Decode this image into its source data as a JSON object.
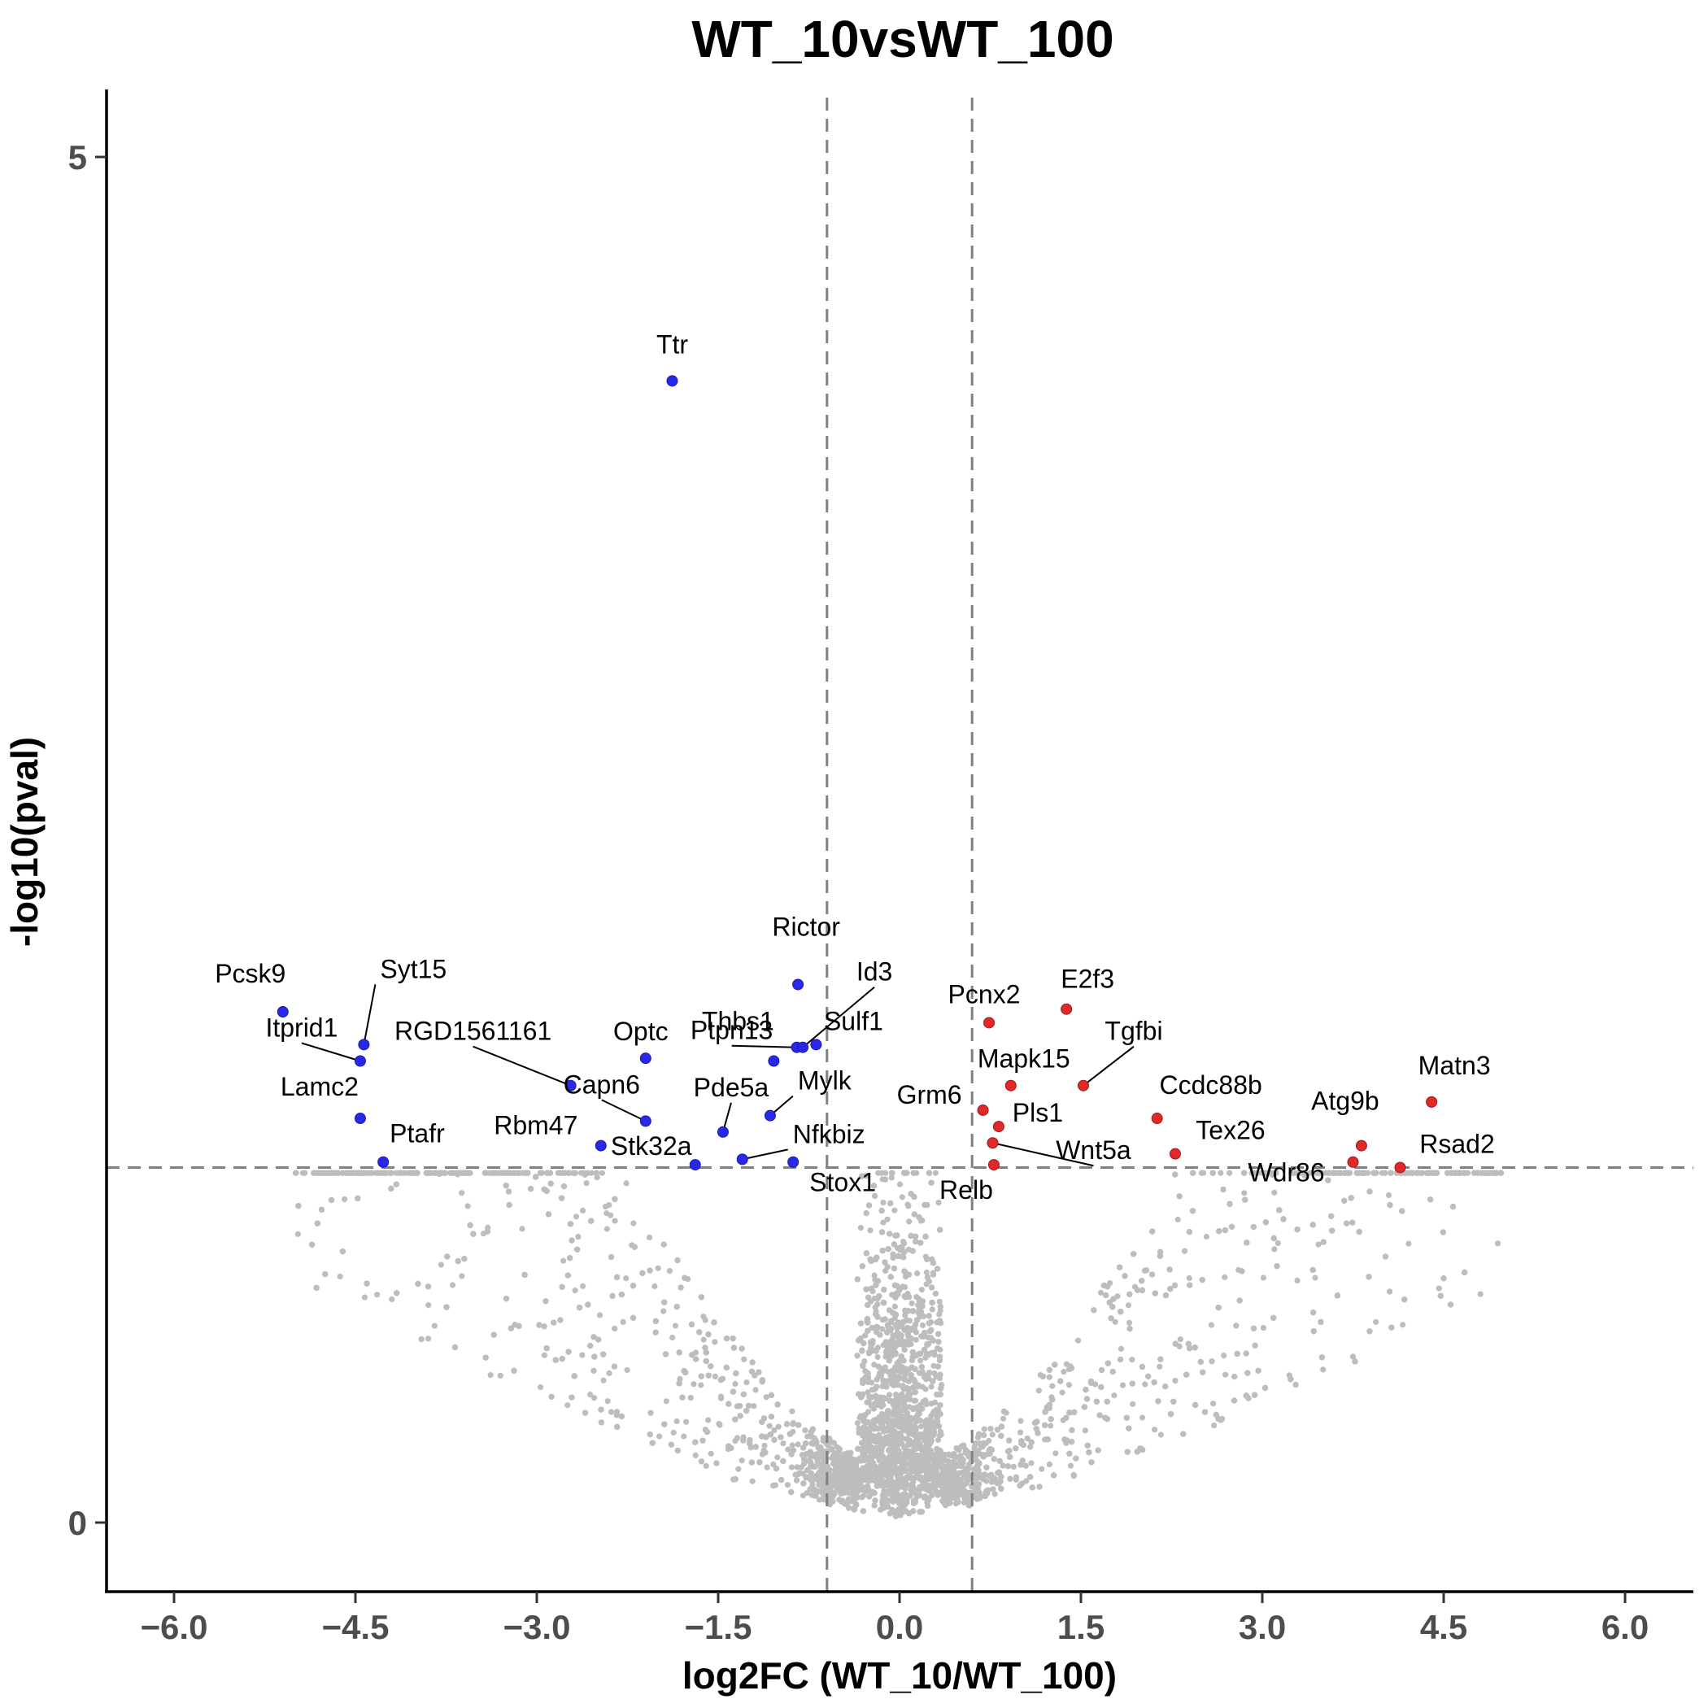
{
  "chart_data": {
    "type": "scatter",
    "title": "WT_10vsWT_100",
    "xlabel": "log2FC (WT_10/WT_100)",
    "ylabel": "-log10(pval)",
    "xlim": [
      -6.5,
      6.5
    ],
    "ylim": [
      -0.25,
      5.25
    ],
    "x_ticks": [
      -6.0,
      -4.5,
      -3.0,
      -1.5,
      0.0,
      1.5,
      3.0,
      4.5,
      6.0
    ],
    "x_tick_labels": [
      "−6.0",
      "−4.5",
      "−3.0",
      "−1.5",
      "0.0",
      "1.5",
      "3.0",
      "4.5",
      "6.0"
    ],
    "y_ticks": [
      0,
      5
    ],
    "y_tick_labels": [
      "0",
      "5"
    ],
    "grid": false,
    "legend": "none",
    "thresholds": {
      "log2fc": [
        -0.6,
        0.6
      ],
      "neg_log10_pval": 1.3
    },
    "colors": {
      "down": "#2828e6",
      "up": "#e02a2a",
      "ns": "#bdbdbd",
      "threshold_line": "#808080"
    },
    "significant_genes": [
      {
        "gene": "Ttr",
        "x": -1.88,
        "y": 4.18,
        "group": "down"
      },
      {
        "gene": "Pcsk9",
        "x": -5.1,
        "y": 1.87,
        "group": "down"
      },
      {
        "gene": "Syt15",
        "x": -4.43,
        "y": 1.75,
        "group": "down"
      },
      {
        "gene": "Itprid1",
        "x": -4.46,
        "y": 1.69,
        "group": "down"
      },
      {
        "gene": "Lamc2",
        "x": -4.46,
        "y": 1.48,
        "group": "down"
      },
      {
        "gene": "Ptafr",
        "x": -4.27,
        "y": 1.32,
        "group": "down"
      },
      {
        "gene": "RGD1561161",
        "x": -2.72,
        "y": 1.6,
        "group": "down"
      },
      {
        "gene": "Optc",
        "x": -2.1,
        "y": 1.7,
        "group": "down"
      },
      {
        "gene": "Capn6",
        "x": -2.1,
        "y": 1.47,
        "group": "down"
      },
      {
        "gene": "Rbm47",
        "x": -2.47,
        "y": 1.38,
        "group": "down"
      },
      {
        "gene": "Stk32a",
        "x": -1.69,
        "y": 1.31,
        "group": "down"
      },
      {
        "gene": "Pde5a",
        "x": -1.46,
        "y": 1.43,
        "group": "down"
      },
      {
        "gene": "Nfkbiz",
        "x": -1.3,
        "y": 1.33,
        "group": "down"
      },
      {
        "gene": "Mylk",
        "x": -1.07,
        "y": 1.49,
        "group": "down"
      },
      {
        "gene": "Thbs1",
        "x": -1.04,
        "y": 1.69,
        "group": "down"
      },
      {
        "gene": "Stox1",
        "x": -0.88,
        "y": 1.32,
        "group": "down"
      },
      {
        "gene": "Rictor",
        "x": -0.84,
        "y": 1.97,
        "group": "down"
      },
      {
        "gene": "Ptpn13",
        "x": -0.85,
        "y": 1.74,
        "group": "down"
      },
      {
        "gene": "Id3",
        "x": -0.8,
        "y": 1.74,
        "group": "down"
      },
      {
        "gene": "Sulf1",
        "x": -0.69,
        "y": 1.75,
        "group": "down"
      },
      {
        "gene": "Pcnx2",
        "x": 0.74,
        "y": 1.83,
        "group": "up"
      },
      {
        "gene": "E2f3",
        "x": 1.38,
        "y": 1.88,
        "group": "up"
      },
      {
        "gene": "Mapk15",
        "x": 0.92,
        "y": 1.6,
        "group": "up"
      },
      {
        "gene": "Tgfbi",
        "x": 1.52,
        "y": 1.6,
        "group": "up"
      },
      {
        "gene": "Grm6",
        "x": 0.69,
        "y": 1.51,
        "group": "up"
      },
      {
        "gene": "Pls1",
        "x": 0.82,
        "y": 1.45,
        "group": "up"
      },
      {
        "gene": "Wnt5a",
        "x": 0.77,
        "y": 1.39,
        "group": "up"
      },
      {
        "gene": "Relb",
        "x": 0.78,
        "y": 1.31,
        "group": "up"
      },
      {
        "gene": "Ccdc88b",
        "x": 2.13,
        "y": 1.48,
        "group": "up"
      },
      {
        "gene": "Tex26",
        "x": 2.28,
        "y": 1.35,
        "group": "up"
      },
      {
        "gene": "Matn3",
        "x": 4.4,
        "y": 1.54,
        "group": "up"
      },
      {
        "gene": "Atg9b",
        "x": 3.82,
        "y": 1.38,
        "group": "up"
      },
      {
        "gene": "Wdr86",
        "x": 3.75,
        "y": 1.32,
        "group": "up"
      },
      {
        "gene": "Rsad2",
        "x": 4.14,
        "y": 1.3,
        "group": "up"
      }
    ],
    "nonsignificant_points": "approximately 15000 grey points forming a symmetric volcano shape below -log10(pval) = 1.3, densest near log2FC = 0"
  }
}
